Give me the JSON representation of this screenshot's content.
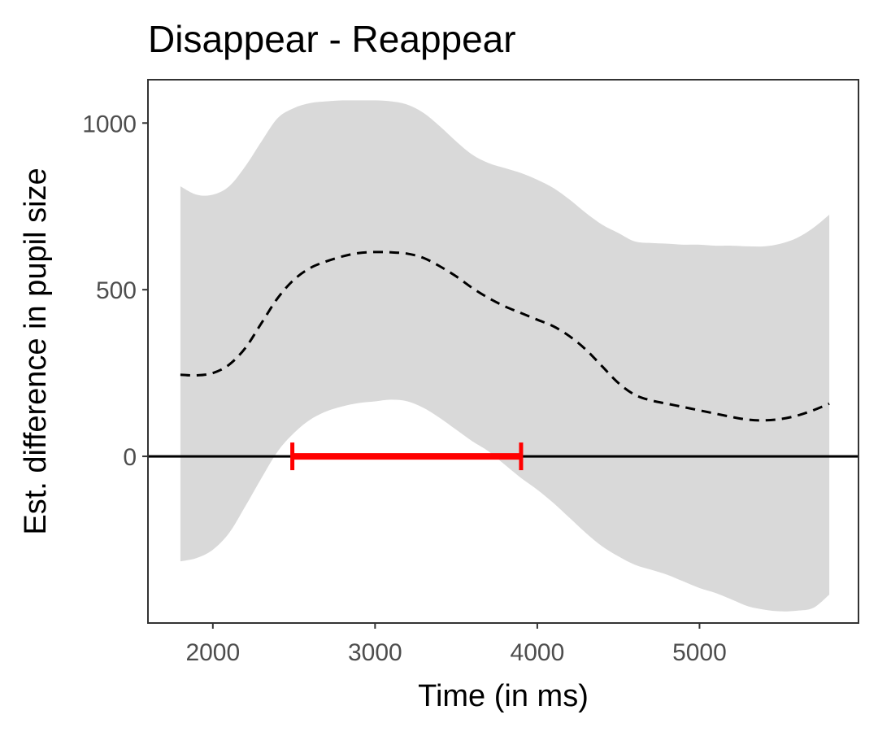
{
  "chart_data": {
    "type": "line",
    "title": "Disappear - Reappear",
    "xlabel": "Time (in ms)",
    "ylabel": "Est. difference in pupil size",
    "xlim": [
      1600,
      5980
    ],
    "ylim": [
      -500,
      1130
    ],
    "x_ticks": [
      2000,
      3000,
      4000,
      5000
    ],
    "y_ticks": [
      0,
      500,
      1000
    ],
    "grid": false,
    "reference_line": 0,
    "series": [
      {
        "style": "dashed",
        "color": "#000000",
        "x": [
          1800,
          1900,
          2000,
          2100,
          2200,
          2300,
          2400,
          2500,
          2600,
          2700,
          2800,
          2900,
          3000,
          3100,
          3200,
          3300,
          3400,
          3500,
          3600,
          3700,
          3800,
          3900,
          4000,
          4100,
          4200,
          4300,
          4400,
          4500,
          4600,
          4700,
          4800,
          4900,
          5000,
          5100,
          5200,
          5300,
          5400,
          5500,
          5600,
          5700,
          5800
        ],
        "values": [
          245,
          243,
          250,
          275,
          325,
          400,
          475,
          530,
          565,
          585,
          600,
          610,
          613,
          612,
          608,
          595,
          570,
          540,
          505,
          475,
          450,
          430,
          410,
          390,
          360,
          320,
          270,
          220,
          185,
          168,
          158,
          148,
          138,
          128,
          118,
          110,
          108,
          112,
          122,
          138,
          158
        ]
      }
    ],
    "ribbon": {
      "color": "#d9d9d9",
      "x": [
        1800,
        1900,
        2000,
        2100,
        2200,
        2300,
        2400,
        2500,
        2600,
        2700,
        2800,
        2900,
        3000,
        3100,
        3200,
        3300,
        3400,
        3500,
        3600,
        3700,
        3800,
        3900,
        4000,
        4100,
        4200,
        4300,
        4400,
        4500,
        4600,
        4700,
        4800,
        4900,
        5000,
        5100,
        5200,
        5300,
        5400,
        5500,
        5600,
        5700,
        5800
      ],
      "upper": [
        810,
        785,
        785,
        810,
        870,
        945,
        1015,
        1045,
        1060,
        1065,
        1068,
        1068,
        1068,
        1065,
        1055,
        1030,
        990,
        945,
        905,
        880,
        865,
        850,
        830,
        805,
        770,
        730,
        695,
        670,
        645,
        640,
        638,
        635,
        635,
        632,
        632,
        630,
        630,
        638,
        655,
        685,
        725
      ],
      "lower": [
        -315,
        -305,
        -280,
        -230,
        -150,
        -65,
        15,
        70,
        110,
        135,
        150,
        160,
        165,
        170,
        165,
        145,
        115,
        80,
        45,
        15,
        -25,
        -65,
        -100,
        -140,
        -185,
        -230,
        -270,
        -300,
        -325,
        -340,
        -355,
        -375,
        -395,
        -410,
        -430,
        -450,
        -460,
        -465,
        -463,
        -455,
        -415
      ]
    },
    "significance_interval": {
      "color": "#ff0000",
      "x_start": 2490,
      "x_end": 3900,
      "y": 0
    }
  }
}
